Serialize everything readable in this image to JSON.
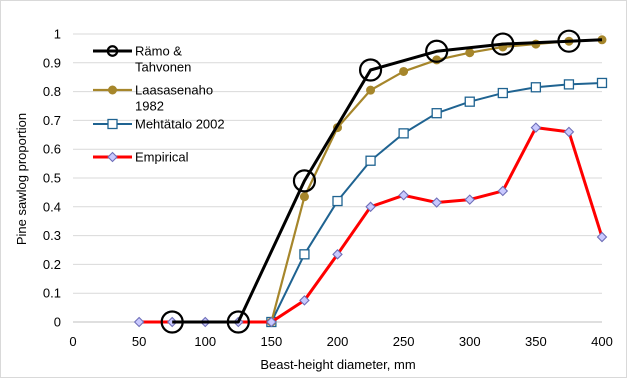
{
  "chart_data": {
    "type": "line",
    "xlabel": "Beast-height diameter, mm",
    "ylabel": "Pine sawlog proportion",
    "xlim": [
      0,
      400
    ],
    "ylim": [
      0,
      1
    ],
    "x_ticks": [
      "0",
      "50",
      "100",
      "150",
      "200",
      "250",
      "300",
      "350",
      "400"
    ],
    "y_ticks": [
      "0",
      "0.1",
      "0.2",
      "0.3",
      "0.4",
      "0.5",
      "0.6",
      "0.7",
      "0.8",
      "0.9",
      "1"
    ],
    "grid": "horizontal",
    "legend_position": "top-left",
    "series": [
      {
        "name_lines": [
          "Rämo &",
          "Tahvonen"
        ],
        "color": "#000000",
        "marker": "big-open-circle",
        "x": [
          75,
          125,
          175,
          225,
          275,
          325,
          375,
          400
        ],
        "y": [
          0,
          0,
          0.49,
          0.875,
          0.94,
          0.965,
          0.975,
          0.98
        ],
        "marker_x": [
          75,
          125,
          175,
          225,
          275,
          325,
          375
        ]
      },
      {
        "name_lines": [
          "Laasasenaho",
          "1982"
        ],
        "color": "#a6862b",
        "marker": "filled-circle",
        "x": [
          150,
          175,
          200,
          225,
          250,
          275,
          300,
          325,
          350,
          375,
          400
        ],
        "y": [
          0,
          0.435,
          0.675,
          0.805,
          0.87,
          0.91,
          0.935,
          0.955,
          0.965,
          0.975,
          0.98
        ]
      },
      {
        "name_lines": [
          "Mehtätalo 2002"
        ],
        "color": "#1f6391",
        "marker": "open-square",
        "x": [
          150,
          175,
          200,
          225,
          250,
          275,
          300,
          325,
          350,
          375,
          400
        ],
        "y": [
          0,
          0.235,
          0.42,
          0.56,
          0.655,
          0.725,
          0.765,
          0.795,
          0.815,
          0.825,
          0.83
        ]
      },
      {
        "name_lines": [
          "Empirical"
        ],
        "color": "#ff0000",
        "marker": "open-diamond",
        "x": [
          50,
          75,
          100,
          125,
          150,
          175,
          200,
          225,
          250,
          275,
          300,
          325,
          350,
          375,
          400
        ],
        "y": [
          0,
          0,
          0,
          0,
          0,
          0.075,
          0.235,
          0.4,
          0.44,
          0.415,
          0.425,
          0.455,
          0.675,
          0.66,
          0.295
        ]
      }
    ]
  }
}
